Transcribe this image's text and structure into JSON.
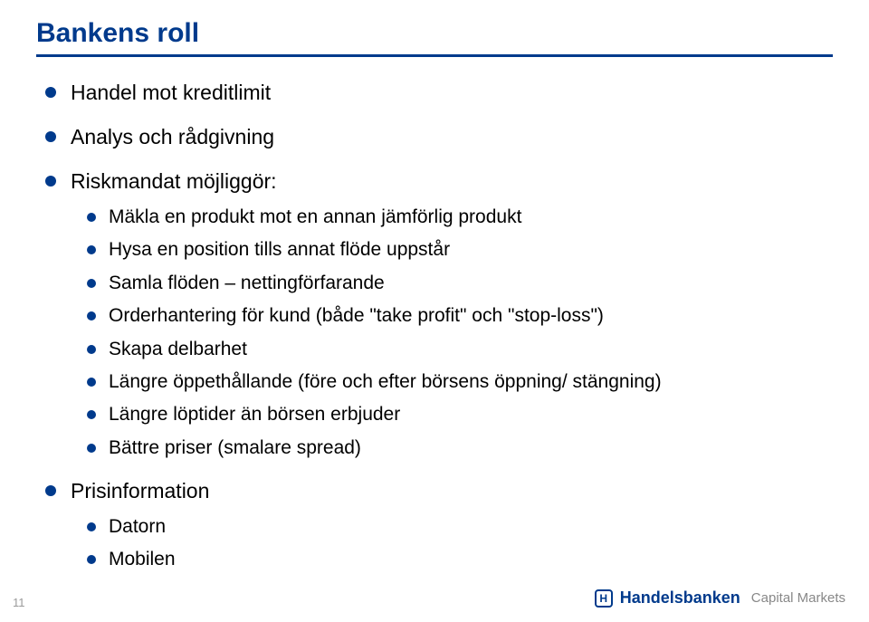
{
  "title": "Bankens roll",
  "bullets": [
    {
      "text": "Handel mot kreditlimit",
      "children": []
    },
    {
      "text": "Analys och rådgivning",
      "children": []
    },
    {
      "text": "Riskmandat möjliggör:",
      "children": [
        "Mäkla en produkt mot en annan jämförlig produkt",
        "Hysa en position tills annat flöde uppstår",
        "Samla flöden – nettingförfarande",
        "Orderhantering för kund (både \"take profit\" och \"stop-loss\")",
        "Skapa delbarhet",
        "Längre öppethållande (före och efter börsens öppning/ stängning)",
        "Längre löptider än börsen erbjuder",
        "Bättre priser (smalare spread)"
      ]
    },
    {
      "text": "Prisinformation",
      "children": [
        "Datorn",
        "Mobilen"
      ]
    }
  ],
  "pageNumber": "11",
  "logo": {
    "brand": "Handelsbanken",
    "sub": "Capital Markets"
  },
  "colors": {
    "accent": "#003a8c",
    "text": "#000000",
    "muted": "#9a9a9a",
    "bg": "#ffffff"
  }
}
